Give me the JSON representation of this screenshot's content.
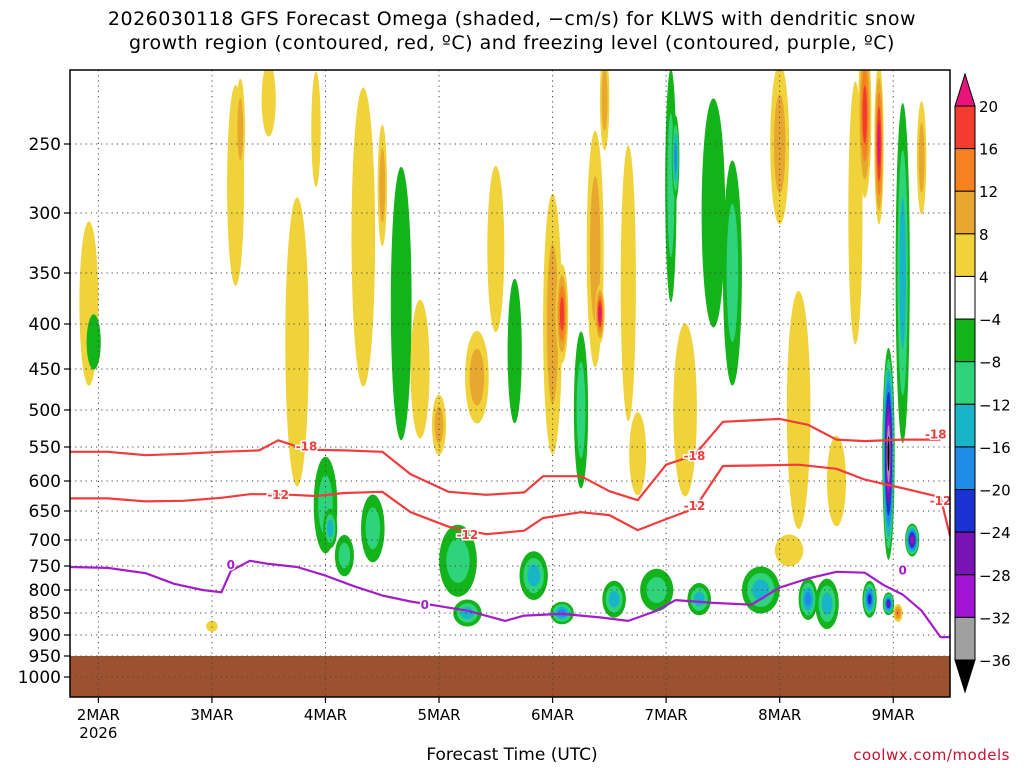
{
  "chart_data": {
    "type": "heatmap",
    "title_line1": "2026030118 GFS Forecast Omega (shaded, −cm/s) for KLWS with dendritic snow",
    "title_line2": "growth region (contoured, red, ºC) and freezing level (contoured, purple, ºC)",
    "xlabel": "Forecast Time (UTC)",
    "ylabel": "",
    "credit": "coolwx.com/models",
    "y_axis": {
      "scale": "pressure",
      "range": [
        1000,
        200
      ],
      "ticks": [
        {
          "p": 250,
          "label": "250"
        },
        {
          "p": 300,
          "label": "300"
        },
        {
          "p": 350,
          "label": "350"
        },
        {
          "p": 400,
          "label": "400"
        },
        {
          "p": 450,
          "label": "450"
        },
        {
          "p": 500,
          "label": "500"
        },
        {
          "p": 550,
          "label": "550"
        },
        {
          "p": 600,
          "label": "600"
        },
        {
          "p": 650,
          "label": "650"
        },
        {
          "p": 700,
          "label": "700"
        },
        {
          "p": 750,
          "label": "750"
        },
        {
          "p": 800,
          "label": "800"
        },
        {
          "p": 850,
          "label": "850"
        },
        {
          "p": 900,
          "label": "900"
        },
        {
          "p": 950,
          "label": "950"
        },
        {
          "p": 1000,
          "label": "1000"
        }
      ]
    },
    "x_axis": {
      "range": [
        0,
        186
      ],
      "ticks": [
        {
          "h": 6,
          "label": "2MAR",
          "sub": "2026"
        },
        {
          "h": 30,
          "label": "3MAR",
          "sub": ""
        },
        {
          "h": 54,
          "label": "4MAR",
          "sub": ""
        },
        {
          "h": 78,
          "label": "5MAR",
          "sub": ""
        },
        {
          "h": 102,
          "label": "6MAR",
          "sub": ""
        },
        {
          "h": 126,
          "label": "7MAR",
          "sub": ""
        },
        {
          "h": 150,
          "label": "8MAR",
          "sub": ""
        },
        {
          "h": 174,
          "label": "9MAR",
          "sub": ""
        }
      ]
    },
    "grid": true,
    "legend": {
      "placement": "right",
      "labels": [
        "20",
        "16",
        "12",
        "8",
        "4",
        "−4",
        "−8",
        "−12",
        "−16",
        "−20",
        "−24",
        "−28",
        "−32",
        "−36"
      ],
      "colors": [
        "#e8147c",
        "#f23c2e",
        "#f5821f",
        "#e8a830",
        "#f0d23a",
        "#ffffff",
        "#13b31a",
        "#2ed37a",
        "#18b4c8",
        "#1e8ce6",
        "#1a32d2",
        "#7814b4",
        "#a014d2",
        "#a0a0a0",
        "#000000"
      ]
    },
    "surface_color": "#9c522e",
    "surface_top_p": 950,
    "omega_blobs": [
      {
        "h": 4,
        "p": 380,
        "w": 2,
        "d": 160,
        "v": 5
      },
      {
        "h": 5,
        "p": 420,
        "w": 1.5,
        "d": 60,
        "v": -7
      },
      {
        "h": 30,
        "p": 880,
        "w": 1.2,
        "d": 25,
        "v": 5
      },
      {
        "h": 35,
        "p": 280,
        "w": 1.8,
        "d": 150,
        "v": 5
      },
      {
        "h": 36,
        "p": 240,
        "w": 1,
        "d": 70,
        "v": 9
      },
      {
        "h": 42,
        "p": 220,
        "w": 1.5,
        "d": 60,
        "v": 5
      },
      {
        "h": 48,
        "p": 420,
        "w": 2.5,
        "d": 300,
        "v": 5
      },
      {
        "h": 52,
        "p": 240,
        "w": 1,
        "d": 80,
        "v": 6
      },
      {
        "h": 54,
        "p": 640,
        "w": 2.5,
        "d": 160,
        "v": -8
      },
      {
        "h": 55,
        "p": 680,
        "w": 1.5,
        "d": 70,
        "v": -14
      },
      {
        "h": 58,
        "p": 730,
        "w": 2,
        "d": 80,
        "v": -8
      },
      {
        "h": 62,
        "p": 320,
        "w": 2.5,
        "d": 260,
        "v": 5
      },
      {
        "h": 64,
        "p": 680,
        "w": 2.5,
        "d": 120,
        "v": -9
      },
      {
        "h": 66,
        "p": 280,
        "w": 1,
        "d": 90,
        "v": 8
      },
      {
        "h": 70,
        "p": 380,
        "w": 2.2,
        "d": 260,
        "v": -6
      },
      {
        "h": 74,
        "p": 450,
        "w": 2,
        "d": 160,
        "v": 5
      },
      {
        "h": 78,
        "p": 520,
        "w": 1.5,
        "d": 80,
        "v": 9
      },
      {
        "h": 82,
        "p": 740,
        "w": 4,
        "d": 140,
        "v": -8
      },
      {
        "h": 84,
        "p": 850,
        "w": 3,
        "d": 60,
        "v": -13
      },
      {
        "h": 86,
        "p": 460,
        "w": 2.5,
        "d": 110,
        "v": 9
      },
      {
        "h": 90,
        "p": 330,
        "w": 1.8,
        "d": 140,
        "v": 5
      },
      {
        "h": 94,
        "p": 430,
        "w": 1.5,
        "d": 160,
        "v": -6
      },
      {
        "h": 98,
        "p": 770,
        "w": 3,
        "d": 100,
        "v": -12
      },
      {
        "h": 102,
        "p": 400,
        "w": 2,
        "d": 260,
        "v": 9
      },
      {
        "h": 104,
        "p": 390,
        "w": 1.3,
        "d": 100,
        "v": 18
      },
      {
        "h": 104,
        "p": 850,
        "w": 2.5,
        "d": 50,
        "v": -17
      },
      {
        "h": 108,
        "p": 500,
        "w": 1.5,
        "d": 200,
        "v": -8
      },
      {
        "h": 111,
        "p": 330,
        "w": 1.8,
        "d": 200,
        "v": 10
      },
      {
        "h": 112,
        "p": 390,
        "w": 1,
        "d": 60,
        "v": 20
      },
      {
        "h": 113,
        "p": 220,
        "w": 1,
        "d": 100,
        "v": 9
      },
      {
        "h": 115,
        "p": 820,
        "w": 2.5,
        "d": 80,
        "v": -14
      },
      {
        "h": 118,
        "p": 360,
        "w": 1.6,
        "d": 250,
        "v": 6
      },
      {
        "h": 120,
        "p": 560,
        "w": 1.8,
        "d": 120,
        "v": 5
      },
      {
        "h": 124,
        "p": 800,
        "w": 3.5,
        "d": 90,
        "v": -10
      },
      {
        "h": 127,
        "p": 280,
        "w": 1.2,
        "d": 200,
        "v": -10
      },
      {
        "h": 128,
        "p": 260,
        "w": 0.8,
        "d": 60,
        "v": -18
      },
      {
        "h": 130,
        "p": 500,
        "w": 2.5,
        "d": 220,
        "v": 5
      },
      {
        "h": 133,
        "p": 820,
        "w": 2.5,
        "d": 70,
        "v": -15
      },
      {
        "h": 136,
        "p": 300,
        "w": 2.5,
        "d": 180,
        "v": -7
      },
      {
        "h": 140,
        "p": 350,
        "w": 2,
        "d": 200,
        "v": -8
      },
      {
        "h": 146,
        "p": 800,
        "w": 4,
        "d": 100,
        "v": -12
      },
      {
        "h": 150,
        "p": 250,
        "w": 2,
        "d": 130,
        "v": 9
      },
      {
        "h": 152,
        "p": 720,
        "w": 3,
        "d": 60,
        "v": 5
      },
      {
        "h": 154,
        "p": 500,
        "w": 2.5,
        "d": 300,
        "v": 7
      },
      {
        "h": 156,
        "p": 820,
        "w": 2,
        "d": 90,
        "v": -16
      },
      {
        "h": 160,
        "p": 830,
        "w": 2.5,
        "d": 110,
        "v": -14
      },
      {
        "h": 162,
        "p": 600,
        "w": 2,
        "d": 140,
        "v": 5
      },
      {
        "h": 166,
        "p": 300,
        "w": 1.5,
        "d": 220,
        "v": 7
      },
      {
        "h": 168,
        "p": 230,
        "w": 1.4,
        "d": 180,
        "v": 17
      },
      {
        "h": 169,
        "p": 820,
        "w": 1.5,
        "d": 80,
        "v": -20
      },
      {
        "h": 171,
        "p": 250,
        "w": 1,
        "d": 130,
        "v": 20
      },
      {
        "h": 173,
        "p": 560,
        "w": 1.3,
        "d": 300,
        "v": -40
      },
      {
        "h": 173,
        "p": 830,
        "w": 1.2,
        "d": 50,
        "v": -26
      },
      {
        "h": 175,
        "p": 850,
        "w": 1,
        "d": 40,
        "v": 12
      },
      {
        "h": 176,
        "p": 350,
        "w": 1.5,
        "d": 300,
        "v": -12
      },
      {
        "h": 178,
        "p": 700,
        "w": 1.5,
        "d": 60,
        "v": -28
      },
      {
        "h": 180,
        "p": 260,
        "w": 1,
        "d": 80,
        "v": 10
      }
    ],
    "contours": [
      {
        "name": "-18",
        "color": "#f03c3c",
        "label": "-18",
        "label_at": [
          {
            "h": 50,
            "p": 548
          },
          {
            "h": 132,
            "p": 562
          },
          {
            "h": 183,
            "p": 532
          }
        ],
        "points": [
          [
            0,
            557
          ],
          [
            8,
            557
          ],
          [
            16,
            562
          ],
          [
            24,
            560
          ],
          [
            32,
            557
          ],
          [
            40,
            555
          ],
          [
            44,
            541
          ],
          [
            50,
            554
          ],
          [
            58,
            555
          ],
          [
            66,
            557
          ],
          [
            72,
            590
          ],
          [
            80,
            618
          ],
          [
            88,
            623
          ],
          [
            96,
            619
          ],
          [
            100,
            593
          ],
          [
            108,
            593
          ],
          [
            114,
            617
          ],
          [
            120,
            632
          ],
          [
            126,
            576
          ],
          [
            132,
            562
          ],
          [
            138,
            516
          ],
          [
            144,
            514
          ],
          [
            150,
            512
          ],
          [
            156,
            520
          ],
          [
            162,
            540
          ],
          [
            168,
            542
          ],
          [
            176,
            540
          ],
          [
            184,
            540
          ]
        ]
      },
      {
        "name": "-12",
        "color": "#f03c3c",
        "label": "-12",
        "label_at": [
          {
            "h": 44,
            "p": 622
          },
          {
            "h": 84,
            "p": 690
          },
          {
            "h": 132,
            "p": 640
          },
          {
            "h": 184,
            "p": 632
          }
        ],
        "points": [
          [
            0,
            629
          ],
          [
            8,
            629
          ],
          [
            16,
            634
          ],
          [
            24,
            633
          ],
          [
            32,
            628
          ],
          [
            38,
            622
          ],
          [
            44,
            622
          ],
          [
            52,
            625
          ],
          [
            58,
            620
          ],
          [
            66,
            618
          ],
          [
            72,
            652
          ],
          [
            80,
            677
          ],
          [
            88,
            690
          ],
          [
            96,
            684
          ],
          [
            100,
            662
          ],
          [
            108,
            652
          ],
          [
            114,
            657
          ],
          [
            120,
            683
          ],
          [
            126,
            664
          ],
          [
            132,
            646
          ],
          [
            138,
            578
          ],
          [
            146,
            577
          ],
          [
            154,
            576
          ],
          [
            162,
            582
          ],
          [
            168,
            598
          ],
          [
            176,
            612
          ],
          [
            184,
            627
          ],
          [
            186,
            693
          ]
        ]
      },
      {
        "name": "0",
        "color": "#a21ec8",
        "label": "0",
        "label_at": [
          {
            "h": 34,
            "p": 746
          },
          {
            "h": 75,
            "p": 830
          },
          {
            "h": 176,
            "p": 757
          }
        ],
        "points": [
          [
            0,
            752
          ],
          [
            8,
            754
          ],
          [
            16,
            765
          ],
          [
            22,
            787
          ],
          [
            28,
            800
          ],
          [
            32,
            805
          ],
          [
            34,
            760
          ],
          [
            38,
            740
          ],
          [
            42,
            746
          ],
          [
            48,
            752
          ],
          [
            54,
            770
          ],
          [
            60,
            792
          ],
          [
            66,
            812
          ],
          [
            72,
            825
          ],
          [
            78,
            835
          ],
          [
            84,
            845
          ],
          [
            92,
            868
          ],
          [
            96,
            856
          ],
          [
            104,
            852
          ],
          [
            112,
            860
          ],
          [
            118,
            868
          ],
          [
            124,
            845
          ],
          [
            128,
            822
          ],
          [
            136,
            828
          ],
          [
            144,
            832
          ],
          [
            150,
            795
          ],
          [
            156,
            776
          ],
          [
            162,
            762
          ],
          [
            168,
            764
          ],
          [
            172,
            790
          ],
          [
            176,
            810
          ],
          [
            180,
            845
          ],
          [
            184,
            905
          ],
          [
            186,
            905
          ]
        ]
      }
    ]
  }
}
